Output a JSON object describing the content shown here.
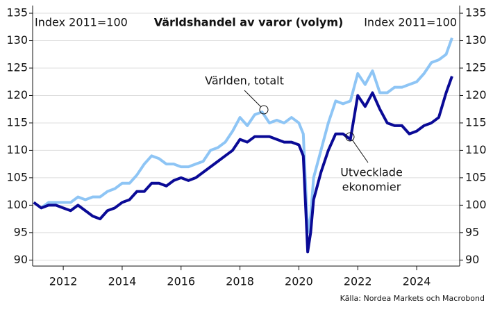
{
  "chart_data": {
    "type": "line",
    "title": "Världshandel av varor (volym)",
    "y_label": "Index 2011=100",
    "y2_label": "Index 2011=100",
    "source": "Källa: Nordea Markets och Macrobond",
    "x": [
      2011,
      2011.25,
      2011.5,
      2011.75,
      2012,
      2012.25,
      2012.5,
      2012.75,
      2013,
      2013.25,
      2013.5,
      2013.75,
      2014,
      2014.25,
      2014.5,
      2014.75,
      2015,
      2015.25,
      2015.5,
      2015.75,
      2016,
      2016.25,
      2016.5,
      2016.75,
      2017,
      2017.25,
      2017.5,
      2017.75,
      2018,
      2018.25,
      2018.5,
      2018.75,
      2019,
      2019.25,
      2019.5,
      2019.75,
      2020,
      2020.15,
      2020.3,
      2020.4,
      2020.5,
      2020.75,
      2021,
      2021.25,
      2021.5,
      2021.75,
      2022,
      2022.25,
      2022.5,
      2022.75,
      2023,
      2023.25,
      2023.5,
      2023.75,
      2024,
      2024.25,
      2024.5,
      2024.75,
      2025,
      2025.2
    ],
    "series": [
      {
        "name": "Världen, totalt",
        "color": "#8ec5f5",
        "values": [
          100.5,
          99.5,
          100.5,
          100.5,
          100.5,
          100.5,
          101.5,
          101,
          101.5,
          101.5,
          102.5,
          103,
          104,
          104,
          105.5,
          107.5,
          109,
          108.5,
          107.5,
          107.5,
          107,
          107,
          107.5,
          108,
          110,
          110.5,
          111.5,
          113.5,
          116,
          114.5,
          116.5,
          117,
          115,
          115.5,
          115,
          116,
          115,
          113,
          95,
          98,
          105,
          110,
          115,
          119,
          118.5,
          119,
          124,
          122,
          124.5,
          120.5,
          120.5,
          121.5,
          121.5,
          122,
          122.5,
          124,
          126,
          126.5,
          127.5,
          130.5
        ]
      },
      {
        "name": "Utvecklade ekonomier",
        "color": "#0a0a96",
        "values": [
          100.5,
          99.5,
          100,
          100,
          99.5,
          99,
          100,
          99,
          98,
          97.5,
          99,
          99.5,
          100.5,
          101,
          102.5,
          102.5,
          104,
          104,
          103.5,
          104.5,
          105,
          104.5,
          105,
          106,
          107,
          108,
          109,
          110,
          112,
          111.5,
          112.5,
          112.5,
          112.5,
          112,
          111.5,
          111.5,
          111,
          109,
          91.5,
          95,
          101,
          106,
          110,
          113,
          113,
          112,
          120,
          118,
          120.5,
          117.5,
          115,
          114.5,
          114.5,
          113,
          113.5,
          114.5,
          115,
          116,
          120.5,
          123.5
        ]
      }
    ],
    "annotations": [
      "Världen, totalt",
      "Utvecklade",
      "ekonomier"
    ],
    "xlim": [
      2010.96,
      2025.46
    ],
    "xticks": [
      2012,
      2014,
      2016,
      2018,
      2020,
      2022,
      2024
    ],
    "ylim": [
      88.9,
      136.4
    ],
    "yticks": [
      90,
      95,
      100,
      105,
      110,
      115,
      120,
      125,
      130,
      135
    ],
    "y2lim": [
      88.9,
      136.4
    ],
    "y2ticks": [
      90,
      95,
      100,
      105,
      110,
      115,
      120,
      125,
      130,
      135
    ],
    "grid": true
  }
}
